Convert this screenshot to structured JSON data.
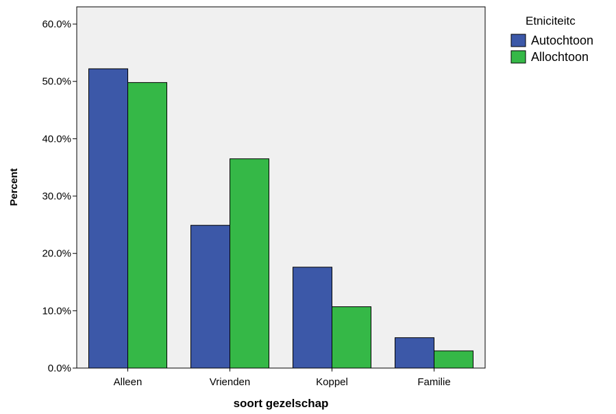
{
  "chart_data": {
    "type": "bar",
    "title": "",
    "xlabel": "soort gezelschap",
    "ylabel": "Percent",
    "categories": [
      "Alleen",
      "Vrienden",
      "Koppel",
      "Familie"
    ],
    "series": [
      {
        "name": "Autochtoon",
        "color": "#3c58a8",
        "values": [
          52.2,
          24.9,
          17.6,
          5.3
        ]
      },
      {
        "name": "Allochtoon",
        "color": "#35b847",
        "values": [
          49.8,
          36.5,
          10.7,
          3.0
        ]
      }
    ],
    "ylim": [
      0,
      63
    ],
    "yticks": [
      0,
      10,
      20,
      30,
      40,
      50,
      60
    ],
    "ytick_labels": [
      "0.0%",
      "10.0%",
      "20.0%",
      "30.0%",
      "40.0%",
      "50.0%",
      "60.0%"
    ],
    "legend_title": "Etniciteitc",
    "legend_position": "right",
    "grid": false,
    "plot_background": "#f0f0f0"
  }
}
